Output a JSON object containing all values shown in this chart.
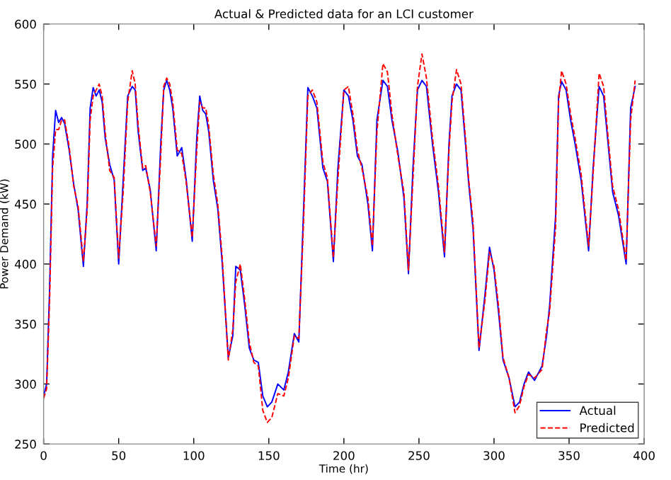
{
  "chart_data": {
    "type": "line",
    "title": "Actual & Predicted data for an LCI customer",
    "xlabel": "Time (hr)",
    "ylabel": "Power Demand (kW)",
    "x": [
      0,
      2,
      4,
      6,
      8,
      10,
      12,
      14,
      17,
      20,
      23,
      26.5,
      29,
      31,
      33,
      35,
      37,
      39,
      41,
      44,
      47,
      50,
      53,
      56,
      59,
      61,
      63,
      66,
      68,
      71,
      75,
      78,
      80,
      82,
      84,
      86,
      89,
      92,
      95,
      99,
      102,
      104,
      106,
      108,
      110,
      113,
      116,
      119,
      123,
      126,
      128,
      131,
      134,
      137,
      140,
      143,
      146,
      149,
      152,
      156,
      160,
      163,
      167,
      170,
      173,
      176,
      179,
      182,
      186,
      189,
      193,
      196,
      200,
      203,
      206,
      209,
      212,
      216,
      219,
      222,
      226,
      229,
      232,
      236,
      240,
      243,
      246,
      249,
      252,
      255,
      259,
      263,
      267,
      270,
      272,
      275,
      278,
      281,
      283,
      286,
      290,
      294,
      297,
      300,
      303,
      306,
      310,
      314,
      317,
      320,
      323,
      327,
      332,
      335,
      337,
      341,
      343,
      345,
      348,
      351,
      354,
      358,
      363,
      366,
      370,
      373,
      376,
      379,
      383,
      388,
      391,
      394
    ],
    "series": [
      {
        "name": "Actual",
        "color": "#0000ff",
        "line_style": "solid",
        "values": [
          290,
          300,
          380,
          490,
          528,
          518,
          522,
          517,
          495,
          467,
          445,
          398,
          450,
          530,
          547,
          540,
          545,
          535,
          505,
          483,
          470,
          400,
          470,
          540,
          548,
          545,
          510,
          478,
          480,
          462,
          411,
          500,
          545,
          553,
          545,
          530,
          490,
          497,
          470,
          419,
          505,
          540,
          528,
          525,
          510,
          470,
          446,
          400,
          322,
          340,
          398,
          395,
          365,
          330,
          320,
          318,
          290,
          281,
          285,
          300,
          295,
          310,
          342,
          335,
          440,
          547,
          540,
          530,
          480,
          469,
          402,
          480,
          545,
          540,
          520,
          490,
          483,
          450,
          411,
          520,
          553,
          548,
          520,
          493,
          455,
          392,
          480,
          545,
          553,
          548,
          500,
          460,
          406,
          500,
          540,
          550,
          545,
          500,
          469,
          430,
          328,
          375,
          414,
          395,
          360,
          320,
          305,
          281,
          285,
          300,
          310,
          303,
          315,
          340,
          365,
          440,
          540,
          552,
          545,
          520,
          500,
          470,
          411,
          480,
          548,
          540,
          500,
          460,
          440,
          400,
          530,
          548
        ]
      },
      {
        "name": "Predicted",
        "color": "#ff0000",
        "line_style": "dashed",
        "values": [
          288,
          296,
          370,
          480,
          512,
          512,
          520,
          520,
          498,
          465,
          448,
          402,
          445,
          520,
          540,
          545,
          550,
          540,
          510,
          478,
          472,
          405,
          460,
          535,
          561,
          550,
          515,
          480,
          482,
          460,
          415,
          490,
          548,
          555,
          550,
          535,
          495,
          492,
          468,
          422,
          495,
          535,
          530,
          530,
          515,
          475,
          450,
          405,
          320,
          345,
          385,
          400,
          370,
          335,
          318,
          315,
          278,
          268,
          272,
          292,
          290,
          305,
          340,
          338,
          430,
          540,
          545,
          535,
          485,
          472,
          405,
          470,
          545,
          548,
          525,
          495,
          480,
          455,
          415,
          510,
          567,
          560,
          525,
          490,
          460,
          395,
          470,
          548,
          575,
          555,
          505,
          465,
          410,
          495,
          535,
          562,
          550,
          505,
          472,
          435,
          330,
          370,
          410,
          398,
          365,
          322,
          305,
          276,
          282,
          298,
          308,
          305,
          312,
          345,
          360,
          430,
          535,
          561,
          550,
          525,
          505,
          475,
          415,
          475,
          559,
          548,
          505,
          465,
          445,
          403,
          520,
          553
        ]
      }
    ],
    "xlim": [
      0,
      400
    ],
    "ylim": [
      250,
      600
    ],
    "xticks": [
      0,
      50,
      100,
      150,
      200,
      250,
      300,
      350,
      400
    ],
    "yticks": [
      250,
      300,
      350,
      400,
      450,
      500,
      550,
      600
    ],
    "legend": "bottom right",
    "grid": false
  }
}
